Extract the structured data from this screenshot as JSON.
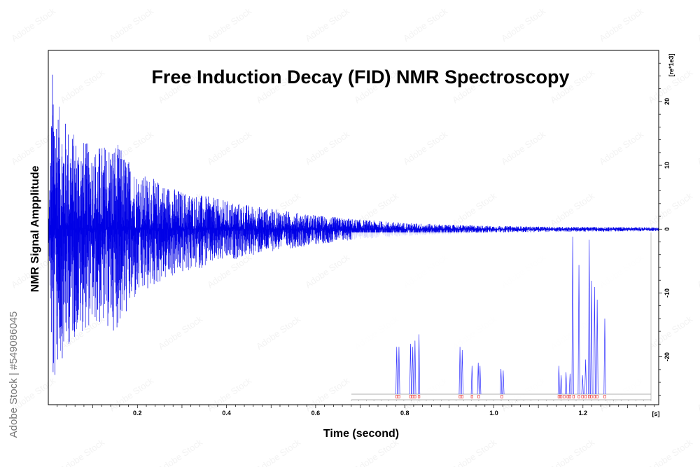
{
  "chart_data": {
    "type": "line",
    "title": "Free Induction Decay (FID) NMR Spectroscopy",
    "xlabel": "Time (second)",
    "ylabel": "NMR Signal Ampplitude",
    "x_unit": "[s]",
    "y_unit": "[re*1e3]",
    "xlim": [
      0.0,
      1.37
    ],
    "ylim": [
      -27.5,
      28
    ],
    "x_ticks": [
      "0.2",
      "0.4",
      "0.6",
      "0.8",
      "1.0",
      "1.2"
    ],
    "x_tick_values": [
      0.2,
      0.4,
      0.6,
      0.8,
      1.0,
      1.2
    ],
    "y_ticks": [
      "20",
      "10",
      "0",
      "-10",
      "-20"
    ],
    "y_tick_values": [
      20,
      10,
      0,
      -10,
      -20
    ],
    "grid": false,
    "series": [
      {
        "color": "#0000e6",
        "envelope": {
          "t": [
            0.0,
            0.01,
            0.02,
            0.04,
            0.06,
            0.1,
            0.15,
            0.2,
            0.25,
            0.3,
            0.4,
            0.5,
            0.6,
            0.7,
            0.8,
            0.9,
            1.0,
            1.1,
            1.2,
            1.37
          ],
          "upper": [
            0,
            26.5,
            20,
            17,
            15,
            13,
            14,
            9,
            7.5,
            6,
            4.5,
            3.2,
            2.2,
            1.5,
            1.0,
            0.7,
            0.5,
            0.4,
            0.35,
            0.3
          ],
          "lower": [
            0,
            -27.5,
            -22,
            -19,
            -17,
            -15,
            -16,
            -11,
            -8.5,
            -7,
            -5,
            -3.5,
            -2.4,
            -1.6,
            -1.1,
            -0.8,
            -0.55,
            -0.45,
            -0.4,
            -0.3
          ]
        }
      }
    ],
    "inset_spectrum": {
      "color": "#3333ff",
      "marker_color": "#e62020",
      "peaks": [
        {
          "x": 0.782,
          "h": 0.3
        },
        {
          "x": 0.787,
          "h": 0.3
        },
        {
          "x": 0.813,
          "h": 0.32
        },
        {
          "x": 0.818,
          "h": 0.3
        },
        {
          "x": 0.823,
          "h": 0.34
        },
        {
          "x": 0.832,
          "h": 0.38
        },
        {
          "x": 0.924,
          "h": 0.3
        },
        {
          "x": 0.929,
          "h": 0.28
        },
        {
          "x": 0.951,
          "h": 0.18
        },
        {
          "x": 0.965,
          "h": 0.2
        },
        {
          "x": 0.969,
          "h": 0.18
        },
        {
          "x": 1.016,
          "h": 0.16
        },
        {
          "x": 1.021,
          "h": 0.15
        },
        {
          "x": 1.146,
          "h": 0.18
        },
        {
          "x": 1.151,
          "h": 0.12
        },
        {
          "x": 1.162,
          "h": 0.14
        },
        {
          "x": 1.171,
          "h": 0.13
        },
        {
          "x": 1.177,
          "h": 1.0
        },
        {
          "x": 1.191,
          "h": 0.82
        },
        {
          "x": 1.199,
          "h": 0.12
        },
        {
          "x": 1.206,
          "h": 0.22
        },
        {
          "x": 1.214,
          "h": 0.98
        },
        {
          "x": 1.219,
          "h": 0.72
        },
        {
          "x": 1.226,
          "h": 0.68
        },
        {
          "x": 1.232,
          "h": 0.6
        },
        {
          "x": 1.249,
          "h": 0.48
        }
      ],
      "marker_x": [
        0.782,
        0.787,
        0.813,
        0.818,
        0.823,
        0.832,
        0.924,
        0.929,
        0.951,
        0.966,
        1.018,
        1.146,
        1.151,
        1.158,
        1.166,
        1.171,
        1.179,
        1.191,
        1.199,
        1.206,
        1.214,
        1.219,
        1.226,
        1.232,
        1.249
      ]
    }
  },
  "watermark": {
    "side_text": "Adobe Stock | #549086045",
    "tile_text": "Adobe Stock"
  }
}
